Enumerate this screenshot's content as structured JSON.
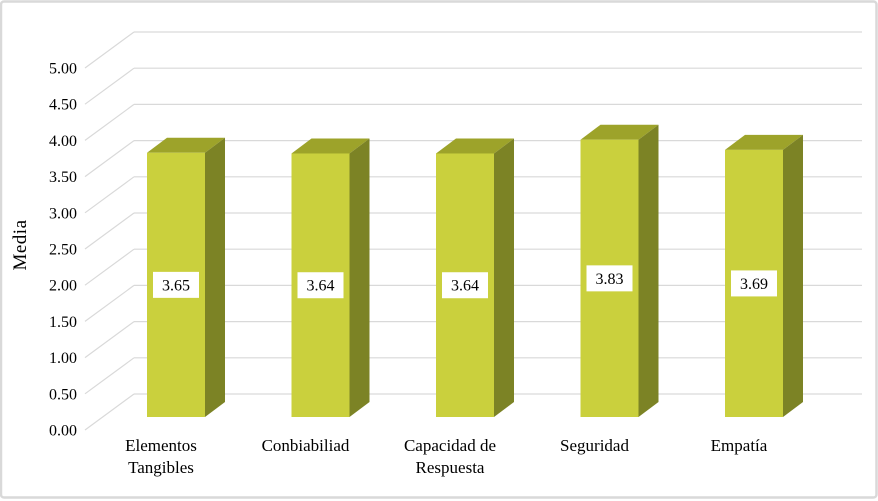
{
  "window": {
    "background": "#FFFFFF",
    "border_color": "#D9D9D9"
  },
  "chart_data": {
    "type": "bar",
    "style": "3d-column",
    "title": "",
    "xlabel": "",
    "ylabel": "Media",
    "categories": [
      {
        "label": "Elementos Tangibles",
        "lines": [
          "Elementos",
          "Tangibles"
        ]
      },
      {
        "label": "Conbiabiliad",
        "lines": [
          "Conbiabiliad"
        ]
      },
      {
        "label": "Capacidad de Respuesta",
        "lines": [
          "Capacidad de",
          "Respuesta"
        ]
      },
      {
        "label": "Seguridad",
        "lines": [
          "Seguridad"
        ]
      },
      {
        "label": "Empatía",
        "lines": [
          "Empatía"
        ]
      }
    ],
    "values": [
      3.65,
      3.64,
      3.64,
      3.83,
      3.69
    ],
    "value_labels": [
      "3.65",
      "3.64",
      "3.64",
      "3.83",
      "3.69"
    ],
    "ylim": [
      0,
      5
    ],
    "ytick_step": 0.5,
    "ytick_labels": [
      "0.00",
      "0.50",
      "1.00",
      "1.50",
      "2.00",
      "2.50",
      "3.00",
      "3.50",
      "4.00",
      "4.50",
      "5.00"
    ],
    "grid": true,
    "legend": "none",
    "colors": {
      "bar_front": "#CAD03D",
      "bar_top": "#9DA32A",
      "bar_side": "#7C8325",
      "gridline": "#D9D9D9",
      "chart_border": "#D9D9D9",
      "text": "#000000",
      "value_label_bg": "#FFFFFF"
    }
  }
}
